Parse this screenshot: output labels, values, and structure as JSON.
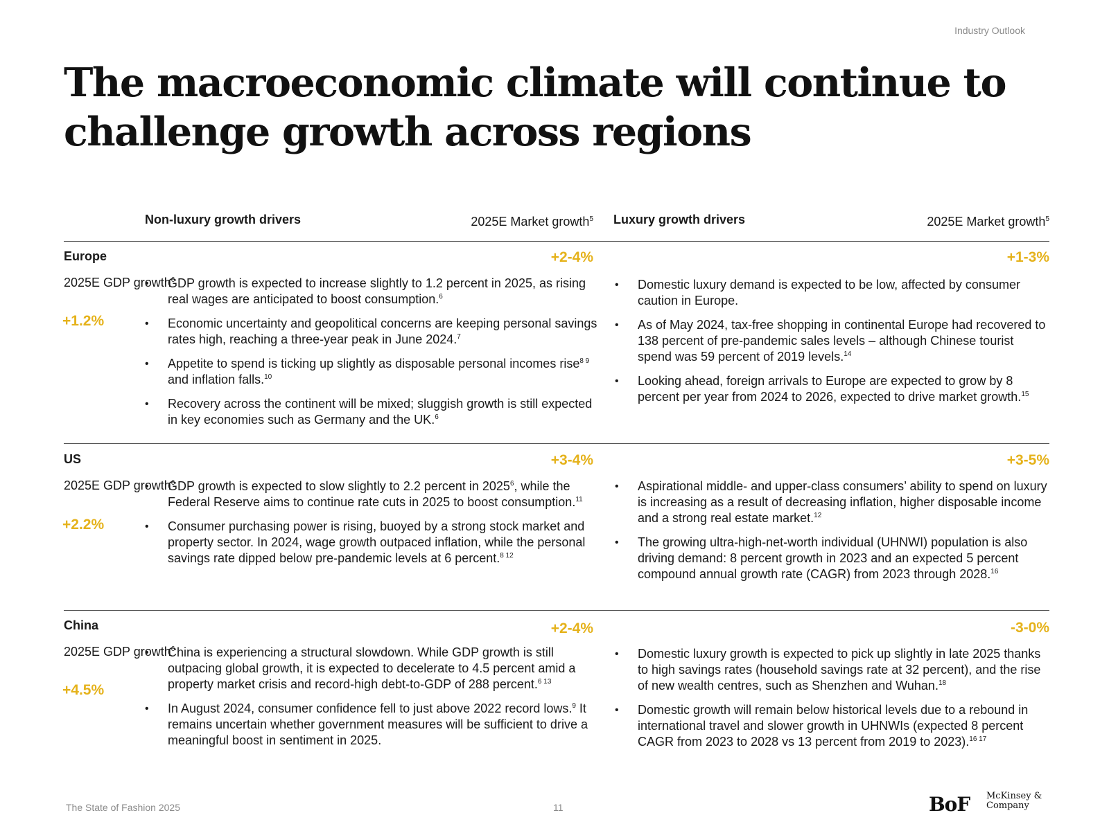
{
  "section_tag": "Industry Outlook",
  "title": "The macroeconomic climate will continue to challenge growth across regions",
  "headers": {
    "nonlux": "Non-luxury growth drivers",
    "market": "2025E Market growth",
    "market_note": "5",
    "lux": "Luxury growth drivers"
  },
  "gdp_label": "2025E GDP growth",
  "gdp_note": "6",
  "regions": [
    {
      "name": "Europe",
      "gdp": "+1.2%",
      "nonlux_growth": "+2-4%",
      "lux_growth": "+1-3%",
      "nonlux": [
        {
          "text": "GDP growth is expected to increase slightly to 1.2 percent in 2025, as rising real wages are anticipated to boost consumption.",
          "note": "6"
        },
        {
          "text": "Economic uncertainty and geopolitical concerns are keeping personal savings rates high, reaching a three-year peak in June 2024.",
          "note": "7"
        },
        {
          "text": "Appetite to spend is ticking up slightly as disposable personal incomes rise",
          "note": "8 9",
          "text2": " and inflation falls.",
          "note2": "10"
        },
        {
          "text": "Recovery across the continent will be mixed; sluggish growth is still expected in key economies such as Germany and the UK.",
          "note": "6"
        }
      ],
      "lux": [
        {
          "text": "Domestic luxury demand is expected to be low, affected by consumer caution in Europe.",
          "note": ""
        },
        {
          "text": "As of May 2024, tax-free shopping in continental Europe had recovered to 138 percent of pre-pandemic sales levels – although Chinese tourist spend was 59 percent of 2019 levels.",
          "note": "14"
        },
        {
          "text": "Looking ahead, foreign arrivals to Europe are expected to grow by 8 percent per year from 2024 to 2026, expected to drive market growth.",
          "note": "15"
        }
      ]
    },
    {
      "name": "US",
      "gdp": "+2.2%",
      "nonlux_growth": "+3-4%",
      "lux_growth": "+3-5%",
      "nonlux": [
        {
          "text": "GDP growth is expected to slow slightly to 2.2 percent in 2025",
          "note": "6",
          "text2": ", while the Federal Reserve aims to continue rate cuts in 2025 to boost consumption.",
          "note2": "11"
        },
        {
          "text": "Consumer purchasing power is rising, buoyed by a strong stock market and property sector. In 2024, wage growth outpaced inflation, while the personal savings rate dipped below pre-pandemic levels at 6 percent.",
          "note": "8 12"
        }
      ],
      "lux": [
        {
          "text": "Aspirational middle- and upper-class consumers’ ability to spend on luxury is increasing as a result of decreasing inflation, higher disposable income and a strong real estate market.",
          "note": "12"
        },
        {
          "text": "The growing ultra-high-net-worth individual (UHNWI) population is also driving demand: 8 percent growth in 2023 and an expected 5 percent compound annual growth rate (CAGR) from 2023 through 2028.",
          "note": "16"
        }
      ]
    },
    {
      "name": "China",
      "gdp": "+4.5%",
      "nonlux_growth": "+2-4%",
      "lux_growth": "-3-0%",
      "nonlux": [
        {
          "text": "China is experiencing a structural slowdown. While GDP growth is still outpacing global growth, it is expected to decelerate to 4.5 percent amid a property market crisis and record-high debt-to-GDP of 288 percent.",
          "note": "6 13"
        },
        {
          "text": "In August 2024, consumer confidence fell to just above 2022 record lows.",
          "note": "9",
          "text2": " It remains uncertain whether government measures will be sufficient to drive a meaningful boost in sentiment in 2025.",
          "note2": ""
        }
      ],
      "lux": [
        {
          "text": "Domestic luxury growth is expected to pick up slightly in late 2025 thanks to high savings rates (household savings rate at 32 percent), and the rise of new wealth centres, such as Shenzhen and Wuhan.",
          "note": "18"
        },
        {
          "text": "Domestic growth will remain below historical levels due to a rebound in international travel and slower growth in UHNWIs (expected 8 percent CAGR from 2023 to 2028 vs 13 percent from 2019 to 2023).",
          "note": "16 17"
        }
      ]
    }
  ],
  "footer": {
    "publication": "The State of Fashion 2025",
    "page": "11",
    "logo_bof": "BoF",
    "logo_mckinsey": "McKinsey & Company"
  }
}
